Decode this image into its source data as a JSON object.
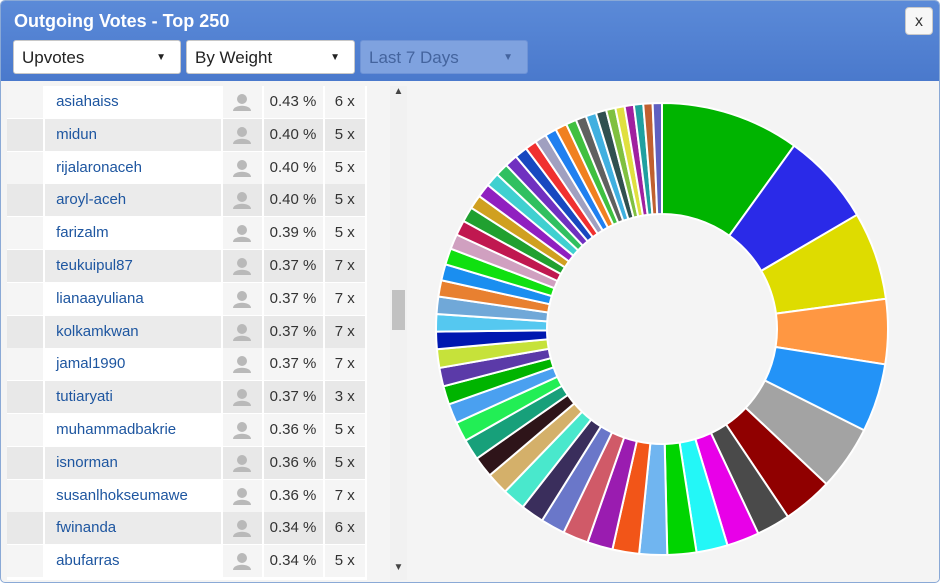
{
  "window": {
    "title": "Outgoing Votes - Top 250",
    "close_label": "x"
  },
  "filters": {
    "type": "Upvotes",
    "sort": "By Weight",
    "period": "Last 7 Days"
  },
  "rows": [
    {
      "name": "asiahaiss",
      "pct": "0.43 %",
      "count": "6 x"
    },
    {
      "name": "midun",
      "pct": "0.40 %",
      "count": "5 x"
    },
    {
      "name": "rijalaronaceh",
      "pct": "0.40 %",
      "count": "5 x"
    },
    {
      "name": "aroyl-aceh",
      "pct": "0.40 %",
      "count": "5 x"
    },
    {
      "name": "farizalm",
      "pct": "0.39 %",
      "count": "5 x"
    },
    {
      "name": "teukuipul87",
      "pct": "0.37 %",
      "count": "7 x"
    },
    {
      "name": "lianaayuliana",
      "pct": "0.37 %",
      "count": "7 x"
    },
    {
      "name": "kolkamkwan",
      "pct": "0.37 %",
      "count": "7 x"
    },
    {
      "name": "jamal1990",
      "pct": "0.37 %",
      "count": "7 x"
    },
    {
      "name": "tutiaryati",
      "pct": "0.37 %",
      "count": "3 x"
    },
    {
      "name": "muhammadbakrie",
      "pct": "0.36 %",
      "count": "5 x"
    },
    {
      "name": "isnorman",
      "pct": "0.36 %",
      "count": "5 x"
    },
    {
      "name": "susanlhokseumawe",
      "pct": "0.36 %",
      "count": "7 x"
    },
    {
      "name": "fwinanda",
      "pct": "0.34 %",
      "count": "6 x"
    },
    {
      "name": "abufarras",
      "pct": "0.34 %",
      "count": "5 x"
    }
  ],
  "chart_data": {
    "type": "pie",
    "donut": true,
    "values": [
      12.0,
      8.0,
      7.6,
      5.6,
      5.9,
      5.6,
      4.3,
      2.9,
      2.8,
      2.7,
      2.5,
      2.4,
      2.3,
      2.2,
      2.2,
      2.1,
      2.0,
      2.0,
      1.9,
      1.8,
      1.8,
      1.7,
      1.7,
      1.6,
      1.6,
      1.6,
      1.5,
      1.5,
      1.5,
      1.4,
      1.4,
      1.4,
      1.3,
      1.3,
      1.3,
      1.2,
      1.2,
      1.2,
      1.1,
      1.1,
      1.1,
      1.0,
      1.0,
      1.0,
      1.0,
      0.9,
      0.9,
      0.9,
      0.9,
      0.8,
      0.8,
      0.8,
      0.8,
      0.8,
      0.8
    ],
    "colors": [
      "#00b400",
      "#2a2ae8",
      "#dedc00",
      "#ff9742",
      "#2393f7",
      "#a3a3a3",
      "#900000",
      "#4a4a4a",
      "#e800e8",
      "#23f7f7",
      "#00d400",
      "#70b5f0",
      "#f25518",
      "#9a1cb0",
      "#d05a68",
      "#6a77c9",
      "#3a2e5c",
      "#49e8cc",
      "#d4b06a",
      "#2e1419",
      "#17a07a",
      "#22ee55",
      "#4aa0f0",
      "#00b400",
      "#5b3aa8",
      "#c6e23a",
      "#0018b0",
      "#55c8f0",
      "#70a8d8",
      "#e88030",
      "#1a8ef0",
      "#10e010",
      "#d0a0c0",
      "#c01850",
      "#20a030",
      "#d0a020",
      "#9020c0",
      "#40d0d0",
      "#30c060",
      "#7030c0",
      "#1848c0",
      "#f03030",
      "#a0a0c0",
      "#2080f0",
      "#f08020",
      "#40c040",
      "#606060",
      "#40b0e0",
      "#305050",
      "#80c040",
      "#e0e040",
      "#a020a0",
      "#20a0a0",
      "#c06030",
      "#6060c0"
    ]
  }
}
